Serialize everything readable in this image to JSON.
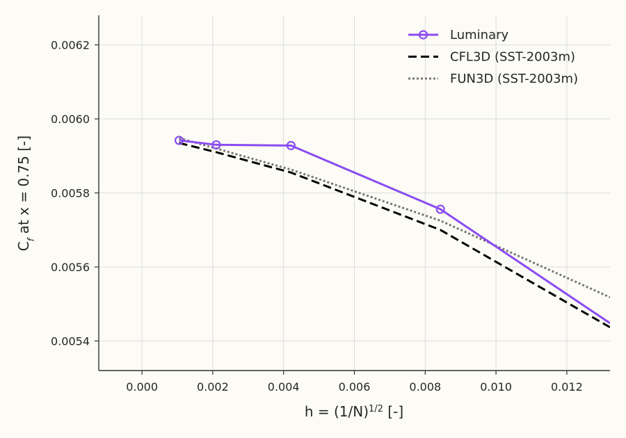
{
  "chart_data": {
    "type": "line",
    "xlabel": "h = (1/N)",
    "xlabel_sup": "1/2",
    "xlabel_suffix": " [-]",
    "ylabel": "C",
    "ylabel_sub": "f",
    "ylabel_suffix": " at x = 0.75 [-]",
    "xlim": [
      -0.00122,
      0.01322
    ],
    "ylim": [
      0.00532,
      0.00628
    ],
    "xticks": [
      0.0,
      0.002,
      0.004,
      0.006,
      0.008,
      0.01,
      0.012
    ],
    "xtick_labels": [
      "0.000",
      "0.002",
      "0.004",
      "0.006",
      "0.008",
      "0.010",
      "0.012"
    ],
    "yticks": [
      0.0054,
      0.0056,
      0.0058,
      0.006,
      0.0062
    ],
    "ytick_labels": [
      "0.0054",
      "0.0056",
      "0.0058",
      "0.0060",
      "0.0062"
    ],
    "grid": true,
    "legend": "top-right",
    "series": [
      {
        "name": "Luminary",
        "color": "#8a4cf1",
        "style": "solid-with-circle-markers",
        "x": [
          0.00105,
          0.0021,
          0.00421,
          0.00843,
          0.01322
        ],
        "y": [
          0.005942,
          0.00593,
          0.005928,
          0.005756,
          0.005448
        ]
      },
      {
        "name": "CFL3D (SST-2003m)",
        "color": "#000000",
        "style": "dashed",
        "x": [
          0.00105,
          0.0021,
          0.00421,
          0.00843,
          0.01322
        ],
        "y": [
          0.005935,
          0.00591,
          0.005855,
          0.0057,
          0.005437
        ]
      },
      {
        "name": "FUN3D (SST-2003m)",
        "color": "#777777",
        "style": "dotted",
        "x": [
          0.00105,
          0.0021,
          0.00421,
          0.00843,
          0.01322
        ],
        "y": [
          0.005948,
          0.00592,
          0.005863,
          0.005725,
          0.005518
        ]
      }
    ]
  }
}
